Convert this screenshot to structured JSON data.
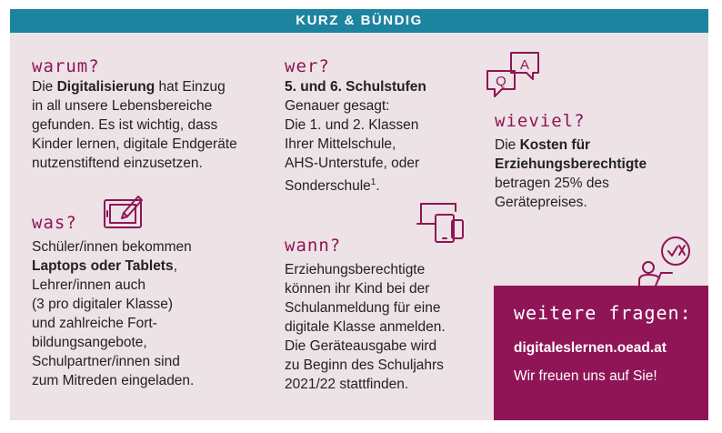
{
  "header": {
    "title": "KURZ & BÜNDIG"
  },
  "warum": {
    "heading": "warum?",
    "lines": [
      [
        {
          "t": "Die "
        },
        {
          "t": "Digitalisierung",
          "b": true
        },
        {
          "t": " hat Einzug"
        }
      ],
      [
        {
          "t": "in all unsere Lebensbereiche"
        }
      ],
      [
        {
          "t": "gefunden. Es ist wichtig, dass"
        }
      ],
      [
        {
          "t": "Kinder lernen, digitale Endgeräte"
        }
      ],
      [
        {
          "t": "nutzenstiftend einzusetzen."
        }
      ]
    ]
  },
  "was": {
    "heading": "was?",
    "lines": [
      [
        {
          "t": "Schüler/innen bekommen"
        }
      ],
      [
        {
          "t": "Laptops oder Tablets",
          "b": true
        },
        {
          "t": ","
        }
      ],
      [
        {
          "t": "Lehrer/innen auch"
        }
      ],
      [
        {
          "t": "(3 pro digitaler Klasse)"
        }
      ],
      [
        {
          "t": "und zahlreiche Fort-"
        }
      ],
      [
        {
          "t": "bildungsangebote,"
        }
      ],
      [
        {
          "t": "Schulpartner/innen sind"
        }
      ],
      [
        {
          "t": "zum Mitreden eingeladen."
        }
      ]
    ]
  },
  "wer": {
    "heading": "wer?",
    "lines": [
      [
        {
          "t": "5. und 6. Schulstufen",
          "b": true
        }
      ],
      [
        {
          "t": "Genauer gesagt:"
        }
      ],
      [
        {
          "t": "Die 1. und 2. Klassen"
        }
      ],
      [
        {
          "t": "Ihrer Mittelschule,"
        }
      ],
      [
        {
          "t": "AHS-Unterstufe, oder"
        }
      ],
      [
        {
          "t": "Sonderschule"
        },
        {
          "t": "1",
          "sup": true
        },
        {
          "t": "."
        }
      ]
    ]
  },
  "wann": {
    "heading": "wann?",
    "lines": [
      [
        {
          "t": "Erziehungsberechtigte"
        }
      ],
      [
        {
          "t": "können ihr Kind bei der"
        }
      ],
      [
        {
          "t": "Schulanmeldung für eine"
        }
      ],
      [
        {
          "t": "digitale Klasse anmelden."
        }
      ],
      [
        {
          "t": "Die Geräteausgabe wird"
        }
      ],
      [
        {
          "t": "zu Beginn des Schuljahrs"
        }
      ],
      [
        {
          "t": "2021/22 stattfinden."
        }
      ]
    ]
  },
  "wieviel": {
    "heading": "wieviel?",
    "lines": [
      [
        {
          "t": "Die "
        },
        {
          "t": "Kosten für",
          "b": true
        }
      ],
      [
        {
          "t": "Erziehungsberechtigte",
          "b": true
        }
      ],
      [
        {
          "t": "betragen 25% des"
        }
      ],
      [
        {
          "t": "Gerätepreises."
        }
      ]
    ]
  },
  "speech_icon": {
    "q": "Q",
    "a": "A"
  },
  "contact": {
    "heading": "weitere fragen:",
    "url": "digitaleslernen.oead.at",
    "thanks": "Wir freuen uns auf Sie!"
  },
  "colors": {
    "accent": "#8f1556",
    "header_bg": "#1d84a0",
    "card_bg": "#ede2e6"
  },
  "icons": [
    "tablet-pen-icon",
    "speech-bubbles-icon",
    "devices-icon",
    "person-laptop-icon"
  ]
}
